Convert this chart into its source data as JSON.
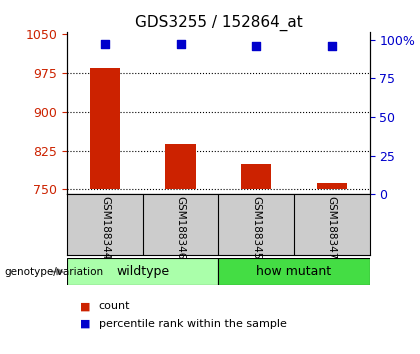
{
  "title": "GDS3255 / 152864_at",
  "samples": [
    "GSM188344",
    "GSM188346",
    "GSM188345",
    "GSM188347"
  ],
  "bar_values": [
    985,
    838,
    800,
    762
  ],
  "percentile_values": [
    97,
    97,
    96,
    96
  ],
  "bar_color": "#cc2200",
  "percentile_color": "#0000cc",
  "ylim_left": [
    740,
    1055
  ],
  "yticks_left": [
    750,
    825,
    900,
    975,
    1050
  ],
  "ylim_right": [
    0,
    105
  ],
  "yticks_right": [
    0,
    25,
    50,
    75,
    100
  ],
  "ytick_labels_right": [
    "0",
    "25",
    "50",
    "75",
    "100%"
  ],
  "groups": [
    {
      "label": "wildtype",
      "indices": [
        0,
        1
      ],
      "color": "#aaffaa"
    },
    {
      "label": "how mutant",
      "indices": [
        2,
        3
      ],
      "color": "#44dd44"
    }
  ],
  "group_label": "genotype/variation",
  "bar_width": 0.4,
  "bar_baseline": 750,
  "legend_count_label": "count",
  "legend_pct_label": "percentile rank within the sample",
  "gridline_color": "#000000",
  "sample_box_color": "#cccccc",
  "background_color": "#ffffff",
  "title_fontsize": 11,
  "tick_fontsize": 9,
  "sample_fontsize": 7.5,
  "group_fontsize": 9,
  "legend_fontsize": 8
}
